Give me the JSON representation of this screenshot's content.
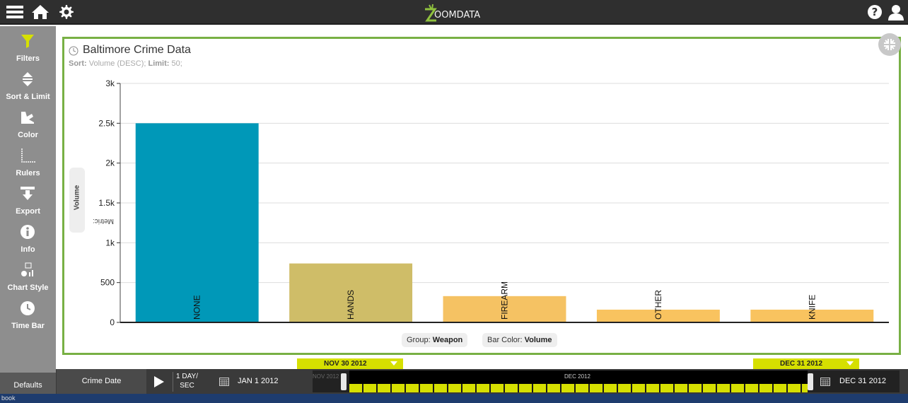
{
  "header": {
    "brand_text": "OOMDATA",
    "brand_letter": "Z",
    "icons": [
      "menu-icon",
      "home-icon",
      "gear-icon",
      "help-icon",
      "user-icon"
    ]
  },
  "sidebar": {
    "items": [
      {
        "label": "Filters",
        "icon": "filter-icon"
      },
      {
        "label": "Sort & Limit",
        "icon": "sort-icon"
      },
      {
        "label": "Color",
        "icon": "color-icon"
      },
      {
        "label": "Rulers",
        "icon": "rulers-icon"
      },
      {
        "label": "Export",
        "icon": "export-icon"
      },
      {
        "label": "Info",
        "icon": "info-icon"
      },
      {
        "label": "Chart Style",
        "icon": "chart-style-icon"
      },
      {
        "label": "Time Bar",
        "icon": "clock-icon"
      }
    ],
    "defaults_label": "Defaults"
  },
  "widget": {
    "title": "Baltimore Crime Data",
    "sort_label": "Sort:",
    "sort_value": "Volume (DESC);",
    "limit_label": "Limit:",
    "limit_value": "50;",
    "metric_label": "Metric:",
    "metric_value": "Volume",
    "group_label": "Group:",
    "group_value": "Weapon",
    "barcolor_label": "Bar Color:",
    "barcolor_value": "Volume"
  },
  "chart_data": {
    "type": "bar",
    "categories": [
      "NONE",
      "HANDS",
      "FIREARM",
      "OTHER",
      "KNIFE"
    ],
    "values": [
      2500,
      740,
      330,
      160,
      160
    ],
    "colors": [
      "#0098b8",
      "#cfbd68",
      "#f5c263",
      "#f9c35f",
      "#f9c35f"
    ],
    "ylim": [
      0,
      3000
    ],
    "yticks": [
      0,
      500,
      1000,
      1500,
      2000,
      2500,
      3000
    ],
    "ytick_labels": [
      "0",
      "500",
      "1k",
      "1.5k",
      "2k",
      "2.5k",
      "3k"
    ],
    "grid": true
  },
  "timebar": {
    "field": "Crime Date",
    "rate_line1": "1 DAY/",
    "rate_line2": "SEC",
    "start": "JAN 1 2012",
    "end": "DEC 31 2012",
    "month_left": "NOV 2012",
    "month_mid": "DEC 2012",
    "flag_left": "NOV 30 2012",
    "flag_right": "DEC 31 2012"
  },
  "taskbar_text": "book",
  "colors": {
    "accent_green": "#78b044",
    "timeline_yellow": "#d6e000",
    "topbar": "#2f2f2f",
    "sidebar": "#8e8e8e"
  }
}
